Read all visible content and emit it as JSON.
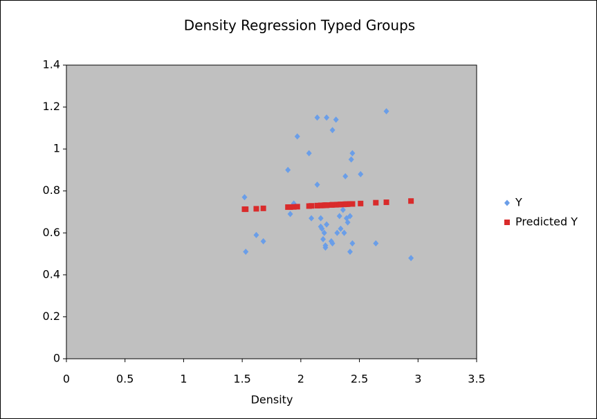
{
  "chart_data": {
    "type": "scatter",
    "title": "Density Regression Typed Groups",
    "x_label": "Density",
    "x": [
      1.52,
      1.53,
      1.62,
      1.68,
      1.89,
      1.91,
      1.94,
      1.97,
      2.07,
      2.09,
      2.14,
      2.14,
      2.17,
      2.17,
      2.18,
      2.19,
      2.2,
      2.21,
      2.21,
      2.22,
      2.22,
      2.26,
      2.27,
      2.27,
      2.3,
      2.31,
      2.33,
      2.34,
      2.36,
      2.37,
      2.38,
      2.39,
      2.4,
      2.42,
      2.43,
      2.44,
      2.42,
      2.44,
      2.51,
      2.64,
      2.73,
      2.94
    ],
    "series": [
      {
        "name": "Y",
        "color": "#6a9ee8",
        "marker": "diamond",
        "values": [
          0.77,
          0.51,
          0.59,
          0.56,
          0.9,
          0.69,
          0.74,
          1.06,
          0.98,
          0.67,
          1.15,
          0.83,
          0.67,
          0.63,
          0.62,
          0.57,
          0.6,
          0.54,
          0.53,
          0.64,
          1.15,
          0.56,
          0.55,
          1.09,
          1.14,
          0.6,
          0.68,
          0.62,
          0.71,
          0.6,
          0.87,
          0.67,
          0.65,
          0.68,
          0.95,
          0.98,
          0.51,
          0.55,
          0.88,
          0.55,
          1.18,
          0.48
        ]
      },
      {
        "name": "Predicted Y",
        "color": "#d92b2b",
        "marker": "square",
        "values": [
          0.713,
          0.713,
          0.715,
          0.717,
          0.723,
          0.723,
          0.724,
          0.725,
          0.728,
          0.729,
          0.73,
          0.73,
          0.731,
          0.731,
          0.731,
          0.731,
          0.732,
          0.732,
          0.732,
          0.732,
          0.732,
          0.733,
          0.734,
          0.734,
          0.734,
          0.735,
          0.735,
          0.736,
          0.736,
          0.736,
          0.737,
          0.737,
          0.737,
          0.738,
          0.738,
          0.738,
          0.738,
          0.738,
          0.74,
          0.744,
          0.746,
          0.752
        ]
      }
    ],
    "xlim": [
      0,
      3.5
    ],
    "xticks": [
      0,
      0.5,
      1,
      1.5,
      2,
      2.5,
      3,
      3.5
    ],
    "ylim": [
      0,
      1.4
    ],
    "yticks": [
      0,
      0.2,
      0.4,
      0.6,
      0.8,
      1,
      1.2,
      1.4
    ],
    "legend": "right",
    "plot_background": "#c0c0c0"
  }
}
